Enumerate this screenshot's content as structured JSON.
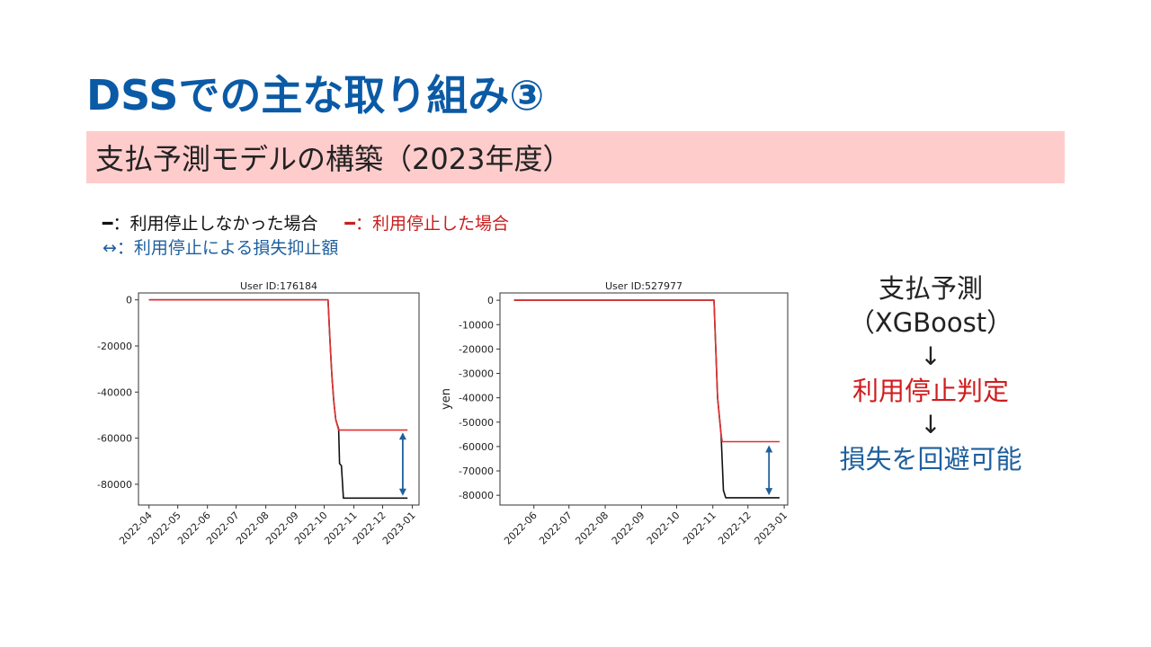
{
  "slide": {
    "title": "DSSでの主な取り組み③",
    "subtitle": "支払予測モデルの構築（2023年度）"
  },
  "legend": {
    "black_marker": "━",
    "black_text": "：利用停止しなかった場合",
    "red_marker": "━",
    "red_text": "：利用停止した場合",
    "blue_marker": "↔",
    "blue_text": "：利用停止による損失抑止額"
  },
  "right_panel": {
    "line1": "支払予測",
    "line2": "（XGBoost）",
    "arrow1": "↓",
    "line3": "利用停止判定",
    "arrow2": "↓",
    "line4": "損失を回避可能"
  },
  "colors": {
    "title": "#0b5aa6",
    "band": "#ffcccc",
    "no_stop_line": "#111111",
    "stop_line": "#e03030",
    "arrow": "#1f5f9e"
  },
  "chart_data": [
    {
      "type": "line",
      "title": "User ID:176184",
      "xlabel": "",
      "ylabel": "",
      "x_ticks": [
        "2022-04",
        "2022-05",
        "2022-06",
        "2022-07",
        "2022-08",
        "2022-09",
        "2022-10",
        "2022-11",
        "2022-12",
        "2023-01"
      ],
      "y_ticks": [
        0,
        -20000,
        -40000,
        -60000,
        -80000
      ],
      "xlim": [
        "2022-03-21",
        "2023-01-08"
      ],
      "ylim": [
        -89000,
        3000
      ],
      "series": [
        {
          "color": "#111111",
          "points": [
            [
              "2022-04-01",
              0
            ],
            [
              "2022-10-05",
              0
            ],
            [
              "2022-10-07",
              -18000
            ],
            [
              "2022-10-09",
              -33000
            ],
            [
              "2022-10-11",
              -44000
            ],
            [
              "2022-10-13",
              -52000
            ],
            [
              "2022-10-16",
              -56000
            ],
            [
              "2022-10-17",
              -71000
            ],
            [
              "2022-10-19",
              -72000
            ],
            [
              "2022-10-21",
              -86000
            ],
            [
              "2022-12-27",
              -86000
            ]
          ]
        },
        {
          "color": "#e03030",
          "points": [
            [
              "2022-04-01",
              0
            ],
            [
              "2022-10-05",
              0
            ],
            [
              "2022-10-07",
              -18000
            ],
            [
              "2022-10-09",
              -33000
            ],
            [
              "2022-10-11",
              -44000
            ],
            [
              "2022-10-13",
              -52000
            ],
            [
              "2022-10-16",
              -56500
            ],
            [
              "2022-12-27",
              -56500
            ]
          ]
        }
      ],
      "annotation": {
        "date": "2022-12-22",
        "from": -57500,
        "to": -85000
      }
    },
    {
      "type": "line",
      "title": "User ID:527977",
      "xlabel": "",
      "ylabel": "yen",
      "x_ticks": [
        "2022-06",
        "2022-07",
        "2022-08",
        "2022-09",
        "2022-10",
        "2022-11",
        "2022-12",
        "2023-01"
      ],
      "y_ticks": [
        0,
        -10000,
        -20000,
        -30000,
        -40000,
        -50000,
        -60000,
        -70000,
        -80000
      ],
      "xlim": [
        "2022-05-03",
        "2023-01-04"
      ],
      "ylim": [
        -84000,
        3000
      ],
      "series": [
        {
          "color": "#111111",
          "points": [
            [
              "2022-05-15",
              0
            ],
            [
              "2022-11-02",
              0
            ],
            [
              "2022-11-05",
              -40000
            ],
            [
              "2022-11-08",
              -55000
            ],
            [
              "2022-11-10",
              -78000
            ],
            [
              "2022-11-12",
              -81000
            ],
            [
              "2022-12-28",
              -81000
            ]
          ]
        },
        {
          "color": "#e03030",
          "points": [
            [
              "2022-05-15",
              0
            ],
            [
              "2022-11-02",
              0
            ],
            [
              "2022-11-05",
              -40000
            ],
            [
              "2022-11-08",
              -55000
            ],
            [
              "2022-11-09",
              -58000
            ],
            [
              "2022-12-28",
              -58000
            ]
          ]
        }
      ],
      "annotation": {
        "date": "2022-12-19",
        "from": -59500,
        "to": -80000
      }
    }
  ]
}
